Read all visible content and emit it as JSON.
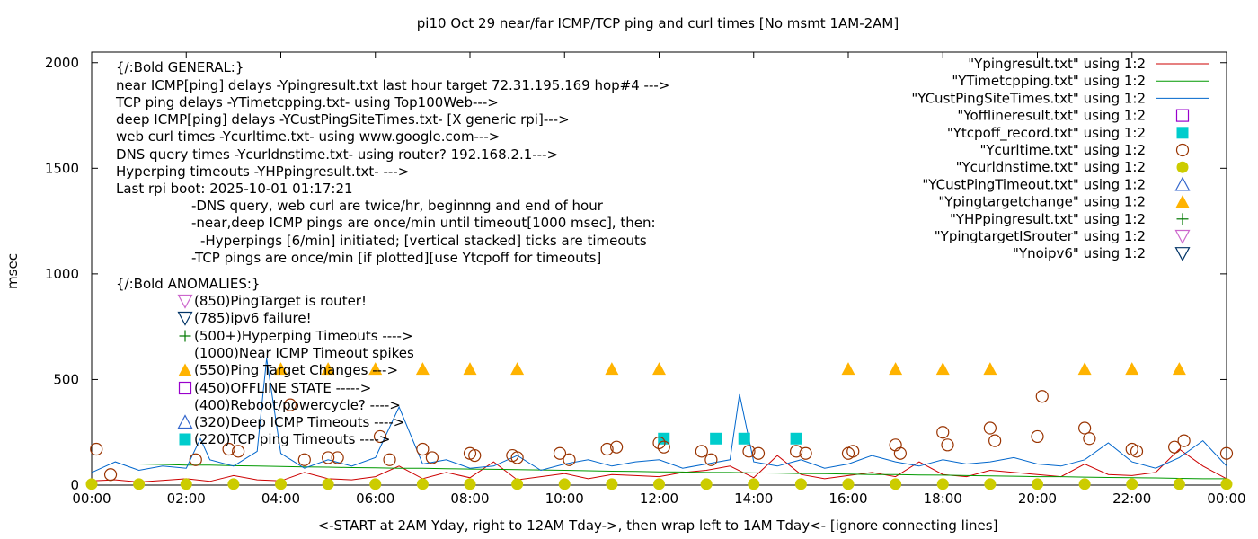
{
  "chart_data": {
    "type": "line",
    "title": "pi10 Oct 29  near/far ICMP/TCP ping and curl times [No msmt 1AM-2AM]",
    "xlabel": "<-START at 2AM Yday, right to 12AM Tday->, then wrap left to 1AM Tday<- [ignore connecting lines]",
    "ylabel": "msec",
    "xlim": [
      0,
      24
    ],
    "ylim": [
      0,
      2050
    ],
    "grid": false,
    "legend_position": "top-right",
    "x_tick_values": [
      0,
      2,
      4,
      6,
      8,
      10,
      12,
      14,
      16,
      18,
      20,
      22,
      24
    ],
    "x_tick_labels": [
      "00:00",
      "02:00",
      "04:00",
      "06:00",
      "08:00",
      "10:00",
      "12:00",
      "14:00",
      "16:00",
      "18:00",
      "20:00",
      "22:00",
      "00:00"
    ],
    "y_ticks": [
      0,
      500,
      1000,
      1500,
      2000
    ],
    "y_tick_labels": [
      "0",
      "500",
      "1000",
      "1500",
      "2000"
    ],
    "annotations": [
      "{/:Bold GENERAL:}",
      "near ICMP[ping] delays -Ypingresult.txt last hour target 72.31.195.169 hop#4 --->",
      "TCP ping delays -YTimetcpping.txt- using Top100Web--->",
      "deep ICMP[ping] delays -YCustPingSiteTimes.txt- [X generic rpi]--->",
      "web curl times -Ycurltime.txt- using www.google.com--->",
      "DNS query times -Ycurldnstime.txt- using router? 192.168.2.1--->",
      "Hyperping timeouts -YHPpingresult.txt- --->",
      "Last rpi boot: 2025-10-01 01:17:21",
      "-DNS query, web curl are twice/hr, beginnng and end of hour",
      "-near,deep ICMP pings are once/min until timeout[1000 msec], then:",
      "-Hyperpings [6/min] initiated; [vertical stacked] ticks are timeouts",
      "-TCP pings are once/min [if plotted][use Ytcpoff for timeouts]",
      "{/:Bold ANOMALIES:}",
      "(850)PingTarget is router!",
      "(785)ipv6 failure!",
      "(500+)Hyperping Timeouts ---->",
      "(1000)Near ICMP Timeout spikes",
      "(550)Ping Target Changes --->",
      "(450)OFFLINE STATE ----->",
      "(400)Reboot/powercycle? ---->",
      "(320)Deep ICMP Timeouts ---->",
      "(220)TCP ping Timeouts ---->"
    ],
    "series": [
      {
        "name": "\"Ypingresult.txt\" using 1:2",
        "style": "line",
        "color": "#cc0000",
        "x": [
          0,
          0.5,
          1,
          1.5,
          2,
          2.5,
          3,
          3.5,
          4,
          4.5,
          5,
          5.5,
          6,
          6.5,
          7,
          7.5,
          8,
          8.5,
          9,
          9.5,
          10,
          10.5,
          11,
          11.5,
          12,
          12.5,
          13,
          13.5,
          14,
          14.5,
          15,
          15.5,
          16,
          16.5,
          17,
          17.5,
          18,
          18.5,
          19,
          19.5,
          20,
          20.5,
          21,
          21.5,
          22,
          22.5,
          23,
          23.5,
          24
        ],
        "y": [
          20,
          25,
          15,
          22,
          30,
          18,
          45,
          25,
          20,
          60,
          30,
          25,
          40,
          90,
          30,
          60,
          35,
          110,
          25,
          40,
          55,
          30,
          50,
          45,
          40,
          60,
          70,
          90,
          35,
          140,
          50,
          30,
          45,
          60,
          40,
          110,
          50,
          40,
          70,
          60,
          50,
          40,
          100,
          50,
          45,
          60,
          170,
          90,
          30
        ]
      },
      {
        "name": "\"YTimetcpping.txt\" using 1:2",
        "style": "line",
        "color": "#009900",
        "x": [
          0,
          0.5,
          1,
          1.5,
          2,
          2.5,
          3,
          3.5,
          4,
          4.5,
          5,
          5.5,
          6,
          6.5,
          7,
          7.5,
          8,
          8.5,
          9,
          9.5,
          10,
          10.5,
          11,
          11.5,
          12,
          12.5,
          13,
          13.5,
          14,
          14.5,
          15,
          15.5,
          16,
          16.5,
          17,
          17.5,
          18,
          18.5,
          19,
          19.5,
          20,
          20.5,
          21,
          21.5,
          22,
          22.5,
          23,
          23.5,
          24
        ],
        "y": [
          100,
          100,
          100,
          98,
          95,
          95,
          92,
          90,
          88,
          86,
          85,
          83,
          82,
          80,
          80,
          78,
          76,
          75,
          73,
          72,
          70,
          68,
          66,
          65,
          63,
          62,
          60,
          60,
          58,
          57,
          55,
          54,
          52,
          50,
          50,
          48,
          47,
          45,
          44,
          42,
          40,
          40,
          38,
          36,
          35,
          34,
          32,
          30,
          30
        ]
      },
      {
        "name": "\"YCustPingSiteTimes.txt\" using 1:2",
        "style": "line",
        "color": "#0066cc",
        "x": [
          0,
          0.5,
          1,
          1.5,
          2,
          2.3,
          2.5,
          3,
          3.5,
          3.7,
          4,
          4.5,
          5,
          5.5,
          6,
          6.5,
          7,
          7.5,
          8,
          8.5,
          9,
          9.5,
          10,
          10.5,
          11,
          11.5,
          12,
          12.5,
          13,
          13.5,
          13.7,
          14,
          14.5,
          15,
          15.5,
          16,
          16.5,
          17,
          17.5,
          18,
          18.5,
          19,
          19.5,
          20,
          20.5,
          21,
          21.5,
          22,
          22.5,
          23,
          23.5,
          24
        ],
        "y": [
          60,
          110,
          70,
          90,
          80,
          220,
          120,
          90,
          160,
          600,
          150,
          80,
          120,
          90,
          130,
          370,
          100,
          120,
          80,
          90,
          140,
          70,
          100,
          120,
          90,
          110,
          120,
          80,
          100,
          120,
          430,
          110,
          90,
          120,
          80,
          100,
          140,
          110,
          90,
          120,
          100,
          110,
          130,
          100,
          90,
          120,
          200,
          110,
          80,
          130,
          210,
          90
        ]
      },
      {
        "name": "\"Yofflineresult.txt\" using 1:2",
        "style": "open-square",
        "color": "#9900cc",
        "x": [],
        "y": []
      },
      {
        "name": "\"Ytcpoff_record.txt\" using 1:2",
        "style": "filled-square",
        "color": "#00cccc",
        "x": [
          12.1,
          13.2,
          13.8,
          14.9
        ],
        "y": [
          220,
          220,
          220,
          220
        ]
      },
      {
        "name": "\"Ycurltime.txt\" using 1:2",
        "style": "open-circle",
        "color": "#993300",
        "x": [
          0.1,
          0.4,
          2.2,
          2.9,
          3.1,
          4.2,
          4.5,
          5.0,
          5.2,
          6.1,
          6.3,
          7.0,
          7.2,
          8.0,
          8.1,
          8.9,
          9.0,
          9.9,
          10.1,
          10.9,
          11.1,
          12.0,
          12.1,
          12.9,
          13.1,
          13.9,
          14.1,
          14.9,
          15.1,
          16.0,
          16.1,
          17.0,
          17.1,
          18.0,
          18.1,
          19.0,
          19.1,
          20.0,
          20.1,
          21.0,
          21.1,
          22.0,
          22.1,
          22.9,
          23.1,
          24.0
        ],
        "y": [
          170,
          50,
          120,
          170,
          160,
          380,
          120,
          130,
          130,
          230,
          120,
          170,
          130,
          150,
          140,
          140,
          130,
          150,
          120,
          170,
          180,
          200,
          180,
          160,
          120,
          160,
          150,
          160,
          150,
          150,
          160,
          190,
          150,
          250,
          190,
          270,
          210,
          230,
          420,
          270,
          220,
          170,
          160,
          180,
          210,
          150
        ]
      },
      {
        "name": "\"Ycurldnstime.txt\" using 1:2",
        "style": "filled-circle",
        "color": "#cccc00",
        "x": [
          0,
          1,
          2,
          3,
          4,
          5,
          6,
          7,
          8,
          9,
          10,
          11,
          12,
          13,
          14,
          15,
          16,
          17,
          18,
          19,
          20,
          21,
          22,
          23,
          24
        ],
        "y": [
          5,
          5,
          5,
          5,
          5,
          5,
          5,
          5,
          5,
          5,
          5,
          5,
          5,
          5,
          5,
          5,
          5,
          5,
          5,
          5,
          5,
          5,
          5,
          5,
          5
        ]
      },
      {
        "name": "\"YCustPingTimeout.txt\" using 1:2",
        "style": "open-triangle",
        "color": "#3366cc",
        "x": [],
        "y": []
      },
      {
        "name": "\"Ypingtargetchange\" using 1:2",
        "style": "filled-triangle",
        "color": "#ffb300",
        "x": [
          4.0,
          5.0,
          6.0,
          7.0,
          8.0,
          9.0,
          11.0,
          12.0,
          16.0,
          17.0,
          18.0,
          19.0,
          21.0,
          22.0,
          23.0
        ],
        "y": [
          550,
          550,
          550,
          550,
          550,
          550,
          550,
          550,
          550,
          550,
          550,
          550,
          550,
          550,
          550
        ]
      },
      {
        "name": "\"YHPpingresult.txt\" using 1:2",
        "style": "plus",
        "color": "#007700",
        "x": [],
        "y": []
      },
      {
        "name": "\"YpingtargetISrouter\" using 1:2",
        "style": "open-triangle-down",
        "color": "#cc66cc",
        "x": [],
        "y": []
      },
      {
        "name": "\"Ynoipv6\" using 1:2",
        "style": "open-triangle-down",
        "color": "#003366",
        "x": [],
        "y": []
      }
    ]
  }
}
